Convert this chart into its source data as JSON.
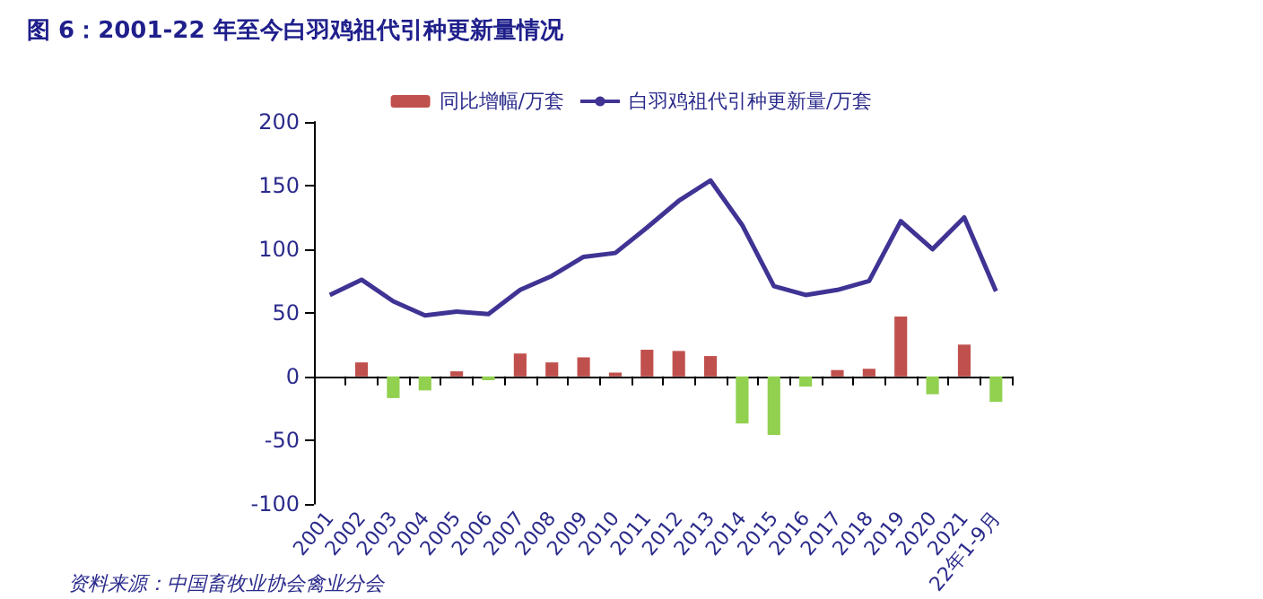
{
  "chart_data": {
    "type": "bar",
    "title": "图 6：2001-22 年至今白羽鸡祖代引种更新量情况",
    "categories": [
      "2001",
      "2002",
      "2003",
      "2004",
      "2005",
      "2006",
      "2007",
      "2008",
      "2009",
      "2010",
      "2011",
      "2012",
      "2013",
      "2014",
      "2015",
      "2016",
      "2017",
      "2018",
      "2019",
      "2020",
      "2021",
      "22年1-9月"
    ],
    "series": [
      {
        "name": "同比增幅/万套",
        "colors": [
          "#c0504d",
          "#c0504d",
          "#92d050",
          "#92d050",
          "#c0504d",
          "#92d050",
          "#c0504d",
          "#c0504d",
          "#c0504d",
          "#c0504d",
          "#c0504d",
          "#c0504d",
          "#c0504d",
          "#92d050",
          "#92d050",
          "#92d050",
          "#c0504d",
          "#c0504d",
          "#c0504d",
          "#92d050",
          "#c0504d",
          "#92d050"
        ],
        "color": "#c0504d",
        "values": [
          null,
          11,
          -17,
          -11,
          4,
          -3,
          18,
          11,
          15,
          3,
          21,
          20,
          16,
          -37,
          -46,
          -8,
          5,
          6,
          47,
          -14,
          25,
          -20
        ]
      },
      {
        "name": "白羽鸡祖代引种更新量/万套",
        "type": "line",
        "color": "#3f3394",
        "values": [
          64,
          76,
          59,
          48,
          51,
          49,
          68,
          79,
          94,
          97,
          117,
          138,
          154,
          119,
          71,
          64,
          68,
          75,
          122,
          100,
          125,
          67
        ]
      }
    ],
    "ylim": [
      -100,
      200
    ],
    "yticks": [
      -100,
      -50,
      0,
      50,
      100,
      150,
      200
    ],
    "legend": "top",
    "marker": "none",
    "annotations": [
      "资料来源：中国畜牧业协会禽业分会"
    ]
  }
}
